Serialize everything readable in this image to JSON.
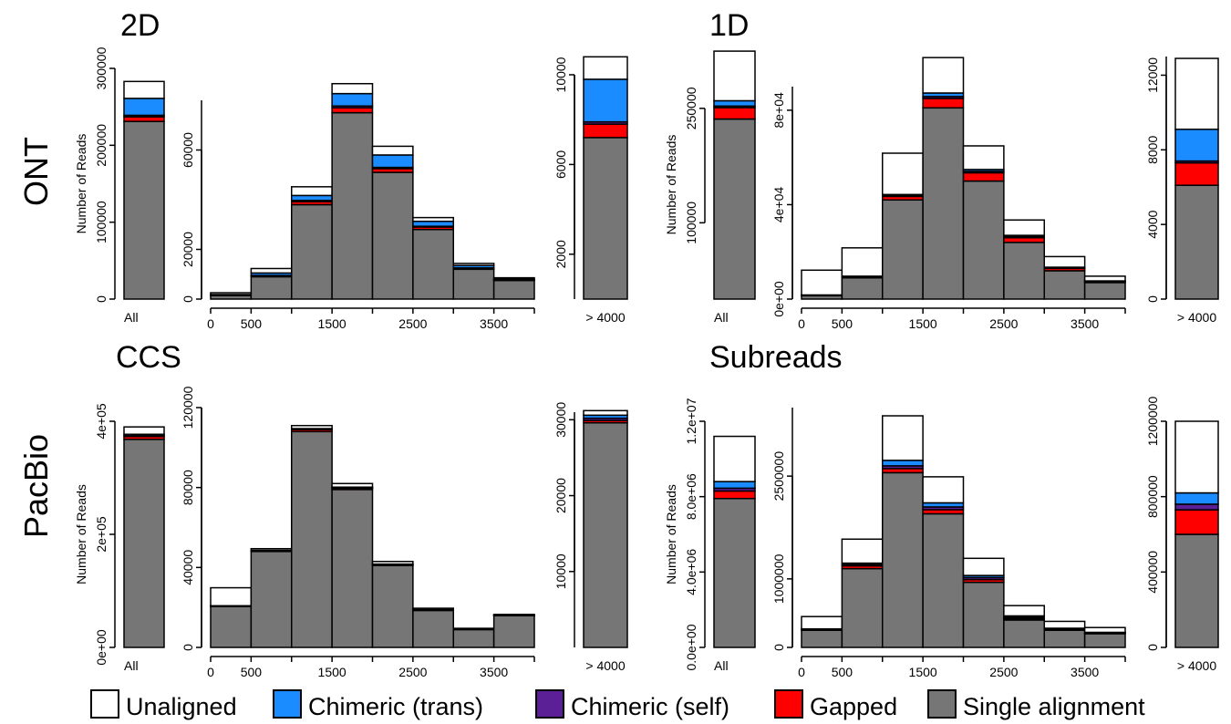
{
  "colors": {
    "unaligned": "#ffffff",
    "chimeric_trans": "#1a8cff",
    "chimeric_self": "#5b1f96",
    "gapped": "#ff0000",
    "single": "#767676"
  },
  "legend": [
    {
      "key": "unaligned",
      "label": "Unaligned"
    },
    {
      "key": "chimeric_trans",
      "label": "Chimeric (trans)"
    },
    {
      "key": "chimeric_self",
      "label": "Chimeric (self)"
    },
    {
      "key": "gapped",
      "label": "Gapped"
    },
    {
      "key": "single",
      "label": "Single alignment"
    }
  ],
  "row_labels": [
    "ONT",
    "PacBio"
  ],
  "chart_data": [
    {
      "type": "bar",
      "title": "2D",
      "row": "ONT",
      "ylabel": "Number of Reads",
      "stack_order": [
        "single",
        "gapped",
        "chimeric_self",
        "chimeric_trans",
        "unaligned"
      ],
      "all": {
        "category": "All",
        "ylim": [
          0,
          300000
        ],
        "yticks": [
          "0",
          "100000",
          "200000",
          "300000"
        ],
        "single": 231000,
        "gapped": 6000,
        "chimeric_self": 2000,
        "chimeric_trans": 22000,
        "unaligned": 22000
      },
      "hist": {
        "ylim": [
          0,
          80000
        ],
        "yticks": [
          "0",
          "20000",
          "60000"
        ],
        "xticks": [
          "0",
          "500",
          "1500",
          "2500",
          "3500"
        ],
        "bins": [
          0,
          500,
          1000,
          1500,
          2000,
          2500,
          3000,
          3500,
          4000
        ],
        "single": [
          1500,
          9000,
          38000,
          75000,
          51000,
          28000,
          12000,
          7500
        ],
        "gapped": [
          100,
          300,
          1200,
          2000,
          1500,
          1000,
          400,
          200
        ],
        "chimeric_self": [
          50,
          200,
          500,
          700,
          500,
          300,
          150,
          80
        ],
        "chimeric_trans": [
          200,
          1000,
          2000,
          5000,
          5000,
          2000,
          1000,
          400
        ],
        "unaligned": [
          700,
          1800,
          3500,
          4000,
          3500,
          1500,
          800,
          400
        ]
      },
      "over": {
        "category": "> 4000",
        "ylim": [
          0,
          10000
        ],
        "yticks": [
          "2000",
          "6000",
          "10000"
        ],
        "single": 7200,
        "gapped": 600,
        "chimeric_self": 100,
        "chimeric_trans": 1900,
        "unaligned": 1000
      }
    },
    {
      "type": "bar",
      "title": "1D",
      "row": "ONT",
      "ylabel": "Number of Reads",
      "stack_order": [
        "single",
        "gapped",
        "chimeric_self",
        "chimeric_trans",
        "unaligned"
      ],
      "all": {
        "category": "All",
        "ylim": [
          0,
          300000
        ],
        "yticks": [
          "100000",
          "250000"
        ],
        "single": 236000,
        "gapped": 15000,
        "chimeric_self": 2000,
        "chimeric_trans": 7000,
        "unaligned": 65000
      },
      "hist": {
        "ylim": [
          0,
          90000
        ],
        "yticks": [
          "0e+00",
          "4e+04",
          "8e+04"
        ],
        "xticks": [
          "0",
          "500",
          "1500",
          "2500",
          "3500"
        ],
        "bins": [
          0,
          500,
          1000,
          1500,
          2000,
          2500,
          3000,
          3500,
          4000
        ],
        "single": [
          1500,
          9000,
          42000,
          81000,
          50000,
          24000,
          12000,
          7000
        ],
        "gapped": [
          100,
          300,
          1500,
          4000,
          3500,
          2000,
          1000,
          500
        ],
        "chimeric_self": [
          50,
          100,
          300,
          800,
          600,
          500,
          300,
          100
        ],
        "chimeric_trans": [
          100,
          300,
          500,
          1500,
          800,
          500,
          200,
          100
        ],
        "unaligned": [
          10500,
          12000,
          17500,
          15000,
          10000,
          6500,
          4500,
          2000
        ]
      },
      "over": {
        "category": "> 4000",
        "ylim": [
          0,
          13000
        ],
        "yticks": [
          "0",
          "4000",
          "8000",
          "12000"
        ],
        "single": 6100,
        "gapped": 1200,
        "chimeric_self": 100,
        "chimeric_trans": 1700,
        "unaligned": 3800
      }
    },
    {
      "type": "bar",
      "title": "CCS",
      "row": "PacBio",
      "ylabel": "Number of Reads",
      "stack_order": [
        "single",
        "gapped",
        "chimeric_self",
        "chimeric_trans",
        "unaligned"
      ],
      "all": {
        "category": "All",
        "ylim": [
          0,
          400000
        ],
        "yticks": [
          "0e+00",
          "2e+05",
          "4e+05"
        ],
        "single": 368000,
        "gapped": 5000,
        "chimeric_self": 1500,
        "chimeric_trans": 2500,
        "unaligned": 13000
      },
      "hist": {
        "ylim": [
          0,
          120000
        ],
        "yticks": [
          "0",
          "40000",
          "80000",
          "120000"
        ],
        "xticks": [
          "0",
          "500",
          "1500",
          "2500",
          "3500"
        ],
        "bins": [
          0,
          500,
          1000,
          1500,
          2000,
          2500,
          3000,
          3500,
          4000
        ],
        "single": [
          20500,
          48000,
          108000,
          79000,
          41000,
          18500,
          9000,
          16000
        ],
        "gapped": [
          200,
          300,
          1000,
          700,
          400,
          200,
          100,
          100
        ],
        "chimeric_self": [
          100,
          200,
          300,
          300,
          200,
          100,
          100,
          50
        ],
        "chimeric_trans": [
          50,
          100,
          200,
          200,
          100,
          100,
          50,
          50
        ],
        "unaligned": [
          9000,
          800,
          1500,
          1800,
          1300,
          700,
          300,
          300
        ]
      },
      "over": {
        "category": "> 4000",
        "ylim": [
          0,
          31000
        ],
        "yticks": [
          "10000",
          "20000",
          "30000"
        ],
        "single": 29600,
        "gapped": 300,
        "chimeric_self": 300,
        "chimeric_trans": 400,
        "unaligned": 600
      }
    },
    {
      "type": "bar",
      "title": "Subreads",
      "row": "PacBio",
      "ylabel": "Number of Reads",
      "stack_order": [
        "single",
        "gapped",
        "chimeric_self",
        "chimeric_trans",
        "unaligned"
      ],
      "all": {
        "category": "All",
        "ylim": [
          0,
          12000000
        ],
        "yticks": [
          "0.0e+00",
          "4.0e+06",
          "8.0e+06",
          "1.2e+07"
        ],
        "single": 7900000,
        "gapped": 400000,
        "chimeric_self": 150000,
        "chimeric_trans": 350000,
        "unaligned": 2400000
      },
      "hist": {
        "ylim": [
          0,
          3500000
        ],
        "yticks": [
          "0",
          "1000000",
          "2500000"
        ],
        "xticks": [
          "0",
          "500",
          "1500",
          "2500",
          "3500"
        ],
        "bins": [
          0,
          500,
          1000,
          1500,
          2000,
          2500,
          3000,
          3500,
          4000
        ],
        "single": [
          250000,
          1150000,
          2550000,
          1950000,
          950000,
          400000,
          250000,
          200000
        ],
        "gapped": [
          10000,
          40000,
          60000,
          60000,
          40000,
          20000,
          10000,
          10000
        ],
        "chimeric_self": [
          5000,
          20000,
          40000,
          40000,
          30000,
          20000,
          10000,
          5000
        ],
        "chimeric_trans": [
          5000,
          20000,
          80000,
          60000,
          30000,
          20000,
          10000,
          5000
        ],
        "unaligned": [
          180000,
          350000,
          650000,
          380000,
          250000,
          150000,
          100000,
          70000
        ]
      },
      "over": {
        "category": "> 4000",
        "ylim": [
          0,
          1200000
        ],
        "yticks": [
          "0",
          "400000",
          "800000",
          "1200000"
        ],
        "single": 600000,
        "gapped": 130000,
        "chimeric_self": 30000,
        "chimeric_trans": 60000,
        "unaligned": 380000
      }
    }
  ]
}
